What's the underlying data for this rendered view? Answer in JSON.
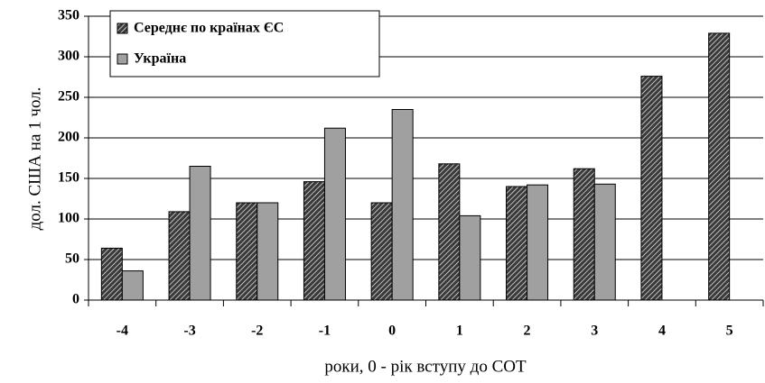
{
  "chart_data": {
    "type": "bar",
    "categories": [
      "-4",
      "-3",
      "-2",
      "-1",
      "0",
      "1",
      "2",
      "3",
      "4",
      "5"
    ],
    "series": [
      {
        "name": "Середнє по країнах ЄС",
        "color": "#3a3a3a",
        "hatch": true,
        "values": [
          64,
          109,
          120,
          146,
          120,
          168,
          140,
          162,
          276,
          329
        ]
      },
      {
        "name": "Україна",
        "color": "#a0a0a0",
        "values": [
          36,
          165,
          120,
          212,
          235,
          104,
          142,
          143,
          null,
          null
        ]
      }
    ],
    "ylim": [
      0,
      350
    ],
    "yticks": [
      0,
      50,
      100,
      150,
      200,
      250,
      300,
      350
    ],
    "ylabel": "дол. США на 1 чол.",
    "xlabel": "роки, 0 - рік вступу до СОТ",
    "grid": true,
    "legend": "upper left"
  }
}
